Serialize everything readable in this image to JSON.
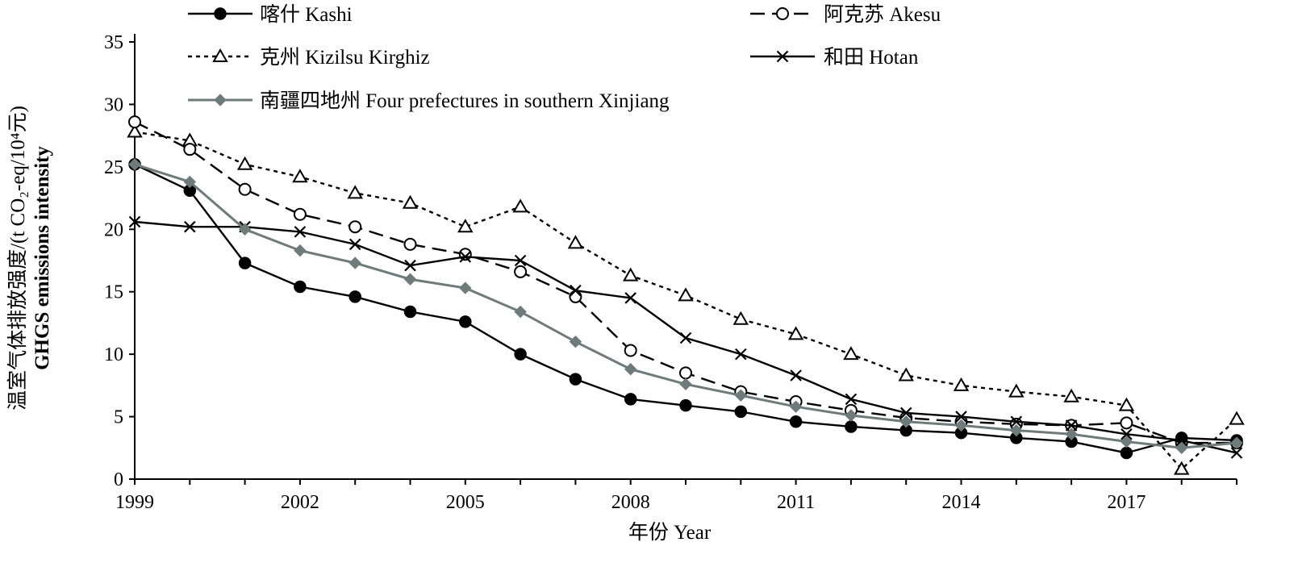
{
  "chart_data": {
    "type": "line",
    "title": "",
    "xlabel": "年份  Year",
    "ylabel_cn": "温室气体排放强度/(t CO₂-eq/10⁴元)",
    "ylabel_en": "GHGS emissions intensity",
    "ylim": [
      0,
      35
    ],
    "yticks": [
      0,
      5,
      10,
      15,
      20,
      25,
      30,
      35
    ],
    "xlim": [
      1999,
      2019
    ],
    "xticks": [
      1999,
      2002,
      2005,
      2008,
      2011,
      2014,
      2017
    ],
    "x": [
      1999,
      2000,
      2001,
      2002,
      2003,
      2004,
      2005,
      2006,
      2007,
      2008,
      2009,
      2010,
      2011,
      2012,
      2013,
      2014,
      2015,
      2016,
      2017,
      2018,
      2019
    ],
    "grid": false,
    "legend_position": "top",
    "series": [
      {
        "name": "喀什  Kashi",
        "color": "#000000",
        "marker": "filled-circle",
        "line": "solid",
        "values": [
          25.2,
          23.1,
          17.3,
          15.4,
          14.6,
          13.4,
          12.6,
          10.0,
          8.0,
          6.4,
          5.9,
          5.4,
          4.6,
          4.2,
          3.9,
          3.7,
          3.3,
          3.0,
          2.1,
          3.3,
          3.1
        ]
      },
      {
        "name": "阿克苏  Akesu",
        "color": "#000000",
        "marker": "open-circle",
        "line": "long-dash",
        "values": [
          28.6,
          26.4,
          23.2,
          21.2,
          20.2,
          18.8,
          18.0,
          16.6,
          14.6,
          10.3,
          8.5,
          7.0,
          6.2,
          5.5,
          4.9,
          4.6,
          4.4,
          4.3,
          4.5,
          2.9,
          2.9
        ]
      },
      {
        "name": "克州  Kizilsu Kirghiz",
        "color": "#000000",
        "marker": "open-triangle",
        "line": "short-dash",
        "values": [
          27.8,
          27.1,
          25.2,
          24.2,
          22.9,
          22.1,
          20.2,
          21.8,
          18.9,
          16.3,
          14.7,
          12.8,
          11.6,
          10.0,
          8.3,
          7.5,
          7.0,
          6.6,
          5.9,
          0.8,
          4.8
        ]
      },
      {
        "name": "和田  Hotan",
        "color": "#000000",
        "marker": "cross",
        "line": "solid",
        "values": [
          20.6,
          20.2,
          20.2,
          19.8,
          18.8,
          17.1,
          17.8,
          17.5,
          15.1,
          14.5,
          11.3,
          10.0,
          8.3,
          6.4,
          5.3,
          5.0,
          4.6,
          4.3,
          3.6,
          3.1,
          2.1
        ]
      },
      {
        "name": "南疆四地州  Four prefectures in southern Xinjiang",
        "color": "#6f7b7b",
        "marker": "filled-diamond",
        "line": "solid",
        "values": [
          25.2,
          23.8,
          20.0,
          18.3,
          17.3,
          16.0,
          15.3,
          13.4,
          11.0,
          8.8,
          7.6,
          6.7,
          5.8,
          5.1,
          4.6,
          4.3,
          3.9,
          3.6,
          3.0,
          2.5,
          2.9
        ]
      }
    ]
  }
}
